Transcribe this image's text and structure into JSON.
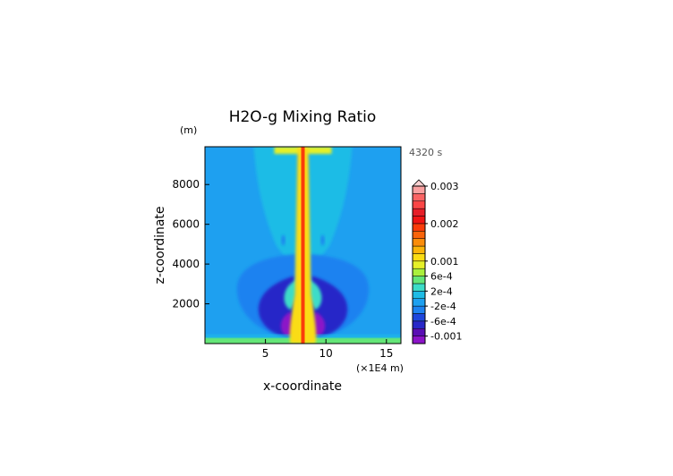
{
  "chart_data": {
    "type": "heatmap",
    "title": "H2O-g Mixing Ratio",
    "time_label": "4320 s",
    "xlabel": "x-coordinate",
    "ylabel": "z-coordinate",
    "x_unit": "(×1E4 m)",
    "y_unit": "(m)",
    "xlim": [
      0,
      16.2
    ],
    "ylim": [
      0,
      9900
    ],
    "xticks": [
      5,
      10,
      15
    ],
    "yticks": [
      2000,
      4000,
      6000,
      8000
    ],
    "colorbar": {
      "levels": [
        -0.0012,
        -0.001,
        -0.0008,
        -0.0006,
        -0.0004,
        -0.0002,
        0,
        0.0002,
        0.0004,
        0.0006,
        0.0008,
        0.001,
        0.0012,
        0.0014,
        0.0016,
        0.0018,
        0.002,
        0.0022,
        0.0024,
        0.0026,
        0.0028,
        0.003
      ],
      "colors": [
        "#8c14c8",
        "#5a0fb4",
        "#2828c8",
        "#1e46dc",
        "#1e82f0",
        "#1ea0f0",
        "#1ebce6",
        "#3cdcc8",
        "#64e678",
        "#aaf03c",
        "#e6f028",
        "#fadc14",
        "#fab40a",
        "#fa8c0a",
        "#fa640a",
        "#fa3c0a",
        "#f01414",
        "#e61e28",
        "#fa4646",
        "#fa6464",
        "#faa0a0"
      ],
      "labels": [
        "0.003",
        "0.002",
        "0.001",
        "6e-4",
        "2e-4",
        "-2e-4",
        "-6e-4",
        "-0.001"
      ],
      "label_values": [
        0.003,
        0.002,
        0.001,
        0.0006,
        0.0002,
        -0.0002,
        -0.0006,
        -0.001
      ],
      "extend": "max"
    }
  }
}
